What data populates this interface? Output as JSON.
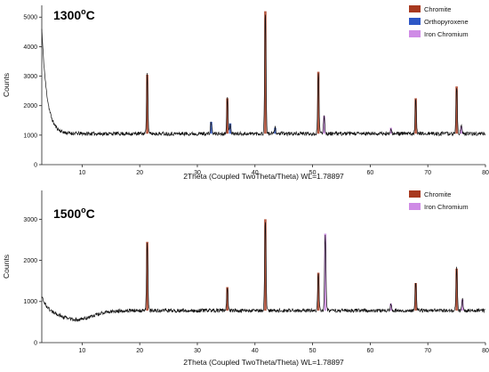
{
  "chart_data": [
    {
      "type": "line",
      "title": "1300°C",
      "title_base": "1300",
      "title_degree": "o",
      "title_unit": "C",
      "xlabel": "2Theta (Coupled TwoTheta/Theta) WL=1.78897",
      "ylabel": "Counts",
      "xlim": [
        3,
        80
      ],
      "ylim": [
        0,
        5400
      ],
      "xticks": [
        10,
        20,
        30,
        40,
        50,
        60,
        70,
        80
      ],
      "yticks": [
        0,
        1000,
        2000,
        3000,
        4000,
        5000
      ],
      "legend_position": "top-right",
      "baseline": 1050,
      "start": {
        "x": 3,
        "y": 4600
      },
      "trace_color": "#111111",
      "series": [
        {
          "name": "Chromite",
          "color": "#a8391f",
          "peaks": [
            {
              "x": 21.3,
              "y": 3050
            },
            {
              "x": 35.2,
              "y": 2250
            },
            {
              "x": 41.8,
              "y": 5200
            },
            {
              "x": 51.0,
              "y": 3150
            },
            {
              "x": 67.9,
              "y": 2250
            },
            {
              "x": 75.0,
              "y": 2650
            }
          ]
        },
        {
          "name": "Orthopyroxene",
          "color": "#2e57c6",
          "peaks": [
            {
              "x": 32.4,
              "y": 1450
            },
            {
              "x": 35.7,
              "y": 1400
            },
            {
              "x": 43.5,
              "y": 1250
            }
          ]
        },
        {
          "name": "Iron Chromium",
          "color": "#cf8be6",
          "peaks": [
            {
              "x": 52.0,
              "y": 1650
            },
            {
              "x": 63.6,
              "y": 1250
            },
            {
              "x": 75.8,
              "y": 1300
            }
          ]
        }
      ]
    },
    {
      "type": "line",
      "title": "1500°C",
      "title_base": "1500",
      "title_degree": "o",
      "title_unit": "C",
      "xlabel": "2Theta (Coupled TwoTheta/Theta) WL=1.78897",
      "ylabel": "Counts",
      "xlim": [
        3,
        80
      ],
      "ylim": [
        0,
        3700
      ],
      "xticks": [
        10,
        20,
        30,
        40,
        50,
        60,
        70,
        80
      ],
      "yticks": [
        0,
        1000,
        2000,
        3000
      ],
      "legend_position": "top-right",
      "baseline": 780,
      "start": {
        "x": 3,
        "y": 1150
      },
      "trace_color": "#111111",
      "series": [
        {
          "name": "Chromite",
          "color": "#a8391f",
          "peaks": [
            {
              "x": 21.3,
              "y": 2450
            },
            {
              "x": 35.2,
              "y": 1350
            },
            {
              "x": 41.8,
              "y": 3000
            },
            {
              "x": 51.0,
              "y": 1700
            },
            {
              "x": 67.9,
              "y": 1450
            },
            {
              "x": 75.0,
              "y": 1800
            }
          ]
        },
        {
          "name": "Iron Chromium",
          "color": "#cf8be6",
          "peaks": [
            {
              "x": 52.2,
              "y": 2650
            },
            {
              "x": 63.6,
              "y": 950
            },
            {
              "x": 76.0,
              "y": 1050
            }
          ]
        }
      ]
    }
  ]
}
